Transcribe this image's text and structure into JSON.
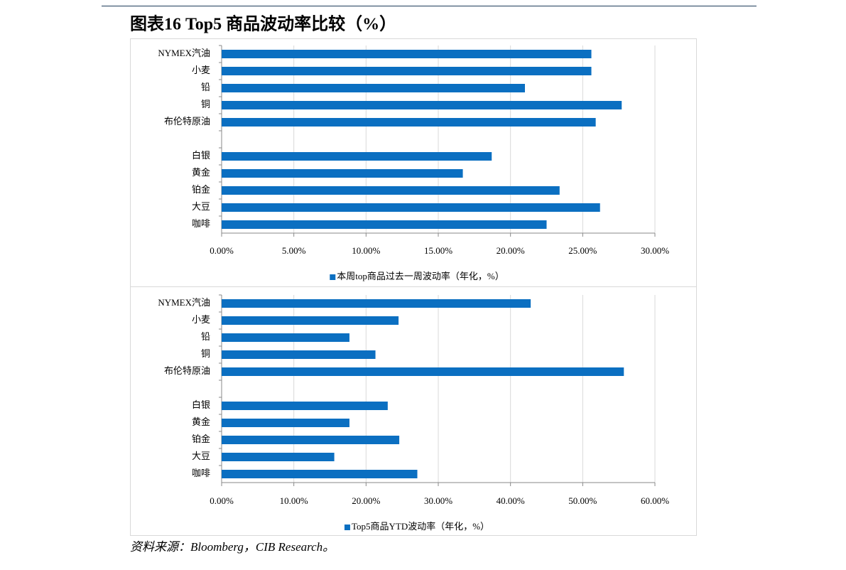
{
  "title": "图表16  Top5 商品波动率比较（%）",
  "source": "资料来源：Bloomberg，CIB Research。",
  "chart_data": [
    {
      "type": "bar",
      "orientation": "horizontal",
      "categories": [
        "NYMEX汽油",
        "小麦",
        "铅",
        "铜",
        "布伦特原油",
        null,
        "白银",
        "黄金",
        "铂金",
        "大豆",
        "咖啡"
      ],
      "series": [
        {
          "name": "本周top商品过去一周波动率（年化，%）",
          "color": "#0b6fc1",
          "values": [
            25.6,
            25.6,
            21.0,
            27.7,
            25.9,
            null,
            18.7,
            16.7,
            23.4,
            26.2,
            22.5
          ]
        }
      ],
      "xlim": [
        0,
        30
      ],
      "xticks": [
        {
          "value": 0,
          "label": "0.00%"
        },
        {
          "value": 5,
          "label": "5.00%"
        },
        {
          "value": 10,
          "label": "10.00%"
        },
        {
          "value": 15,
          "label": "15.00%"
        },
        {
          "value": 20,
          "label": "20.00%"
        },
        {
          "value": 25,
          "label": "25.00%"
        },
        {
          "value": 30,
          "label": "30.00%"
        }
      ],
      "grid": true,
      "legend": "bottom"
    },
    {
      "type": "bar",
      "orientation": "horizontal",
      "categories": [
        "NYMEX汽油",
        "小麦",
        "铅",
        "铜",
        "布伦特原油",
        null,
        "白银",
        "黄金",
        "铂金",
        "大豆",
        "咖啡"
      ],
      "series": [
        {
          "name": "Top5商品YTD波动率（年化，%）",
          "color": "#0b6fc1",
          "values": [
            42.8,
            24.5,
            17.7,
            21.3,
            55.7,
            null,
            23.0,
            17.7,
            24.6,
            15.6,
            27.1
          ]
        }
      ],
      "xlim": [
        0,
        60
      ],
      "xticks": [
        {
          "value": 0,
          "label": "0.00%"
        },
        {
          "value": 10,
          "label": "10.00%"
        },
        {
          "value": 20,
          "label": "20.00%"
        },
        {
          "value": 30,
          "label": "30.00%"
        },
        {
          "value": 40,
          "label": "40.00%"
        },
        {
          "value": 50,
          "label": "50.00%"
        },
        {
          "value": 60,
          "label": "60.00%"
        }
      ],
      "grid": true,
      "legend": "bottom"
    }
  ]
}
